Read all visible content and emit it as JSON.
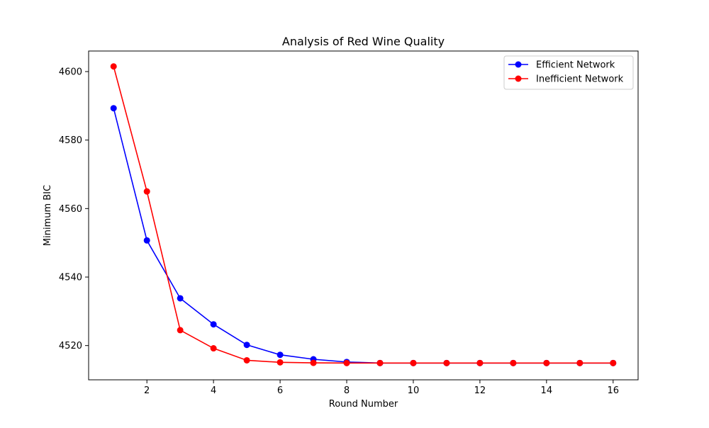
{
  "chart_data": {
    "type": "line",
    "title": "Analysis of Red Wine Quality",
    "xlabel": "Round Number",
    "ylabel": "Minimum BIC",
    "xlim": [
      0.25,
      16.75
    ],
    "ylim": [
      4510,
      4606
    ],
    "x": [
      1,
      2,
      3,
      4,
      5,
      6,
      7,
      8,
      9,
      10,
      11,
      12,
      13,
      14,
      15,
      16
    ],
    "x_ticks": [
      2,
      4,
      6,
      8,
      10,
      12,
      14,
      16
    ],
    "y_ticks": [
      4520,
      4540,
      4560,
      4580,
      4600
    ],
    "grid": false,
    "legend_position": "top-right",
    "series": [
      {
        "name": "Efficient Network",
        "color": "#0000ff",
        "marker": "circle",
        "values": [
          4589.3,
          4550.7,
          4533.8,
          4526.2,
          4520.2,
          4517.3,
          4516.0,
          4515.2,
          4514.9,
          4514.9,
          4514.9,
          4514.9,
          4514.9,
          4514.9,
          4514.9,
          4514.9
        ]
      },
      {
        "name": "Inefficient Network",
        "color": "#ff0000",
        "marker": "circle",
        "values": [
          4601.5,
          4565.0,
          4524.5,
          4519.2,
          4515.7,
          4515.1,
          4514.95,
          4514.9,
          4514.9,
          4514.9,
          4514.9,
          4514.9,
          4514.9,
          4514.9,
          4514.9,
          4514.9
        ]
      }
    ]
  }
}
